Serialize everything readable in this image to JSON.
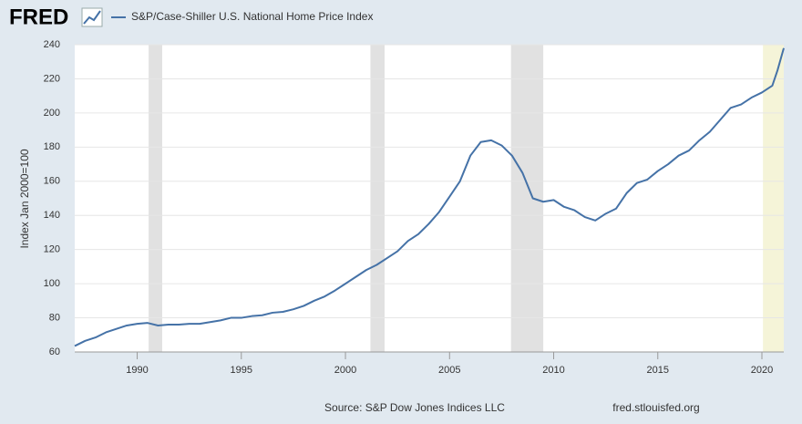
{
  "chart_data": {
    "type": "line",
    "logo": "FRED",
    "y_label": "Index Jan 2000=100",
    "source": "Source: S&P Dow Jones Indices LLC",
    "site": "fred.stlouisfed.org",
    "xlim": [
      1987,
      2021.05
    ],
    "xticks": [
      1990,
      1995,
      2000,
      2005,
      2010,
      2015,
      2020
    ],
    "ylim": [
      60,
      240
    ],
    "yticks": [
      60,
      80,
      100,
      120,
      140,
      160,
      180,
      200,
      220,
      240
    ],
    "grid": true,
    "recessions": [
      [
        1990.55,
        1991.2
      ],
      [
        2001.2,
        2001.88
      ],
      [
        2007.95,
        2009.5
      ]
    ],
    "recession_color": "#e1e1e1",
    "preliminary": [
      [
        2020.05,
        2021.05
      ]
    ],
    "preliminary_color": "#f5f4d8",
    "x": [
      1987,
      1987.5,
      1988,
      1988.5,
      1989,
      1989.5,
      1990,
      1990.5,
      1991,
      1991.5,
      1992,
      1992.5,
      1993,
      1993.5,
      1994,
      1994.5,
      1995,
      1995.5,
      1996,
      1996.5,
      1997,
      1997.5,
      1998,
      1998.5,
      1999,
      1999.5,
      2000,
      2000.5,
      2001,
      2001.5,
      2002,
      2002.5,
      2003,
      2003.5,
      2004,
      2004.5,
      2005,
      2005.5,
      2006,
      2006.5,
      2007,
      2007.5,
      2008,
      2008.5,
      2009,
      2009.5,
      2010,
      2010.5,
      2011,
      2011.5,
      2012,
      2012.5,
      2013,
      2013.5,
      2014,
      2014.5,
      2015,
      2015.5,
      2016,
      2016.5,
      2017,
      2017.5,
      2018,
      2018.5,
      2019,
      2019.5,
      2020,
      2020.5,
      2020.75,
      2021.05
    ],
    "series": [
      {
        "name": "S&P/Case-Shiller U.S. National Home Price Index",
        "color": "#4572a7",
        "values": [
          63.5,
          66.5,
          68.5,
          71.5,
          73.5,
          75.5,
          76.5,
          77,
          75.5,
          76,
          76,
          76.5,
          76.5,
          77.5,
          78.5,
          80,
          80,
          81,
          81.5,
          83,
          83.5,
          85,
          87,
          90,
          92.5,
          96,
          100,
          104,
          108,
          111,
          115,
          119,
          125,
          129,
          135,
          142,
          151,
          160,
          175,
          183,
          184,
          181,
          175,
          165,
          150,
          148,
          149,
          145,
          143,
          139,
          137,
          141,
          144,
          153,
          159,
          161,
          166,
          170,
          175,
          178,
          184,
          189,
          196,
          203,
          205,
          209,
          212,
          216,
          225,
          238
        ]
      }
    ]
  }
}
